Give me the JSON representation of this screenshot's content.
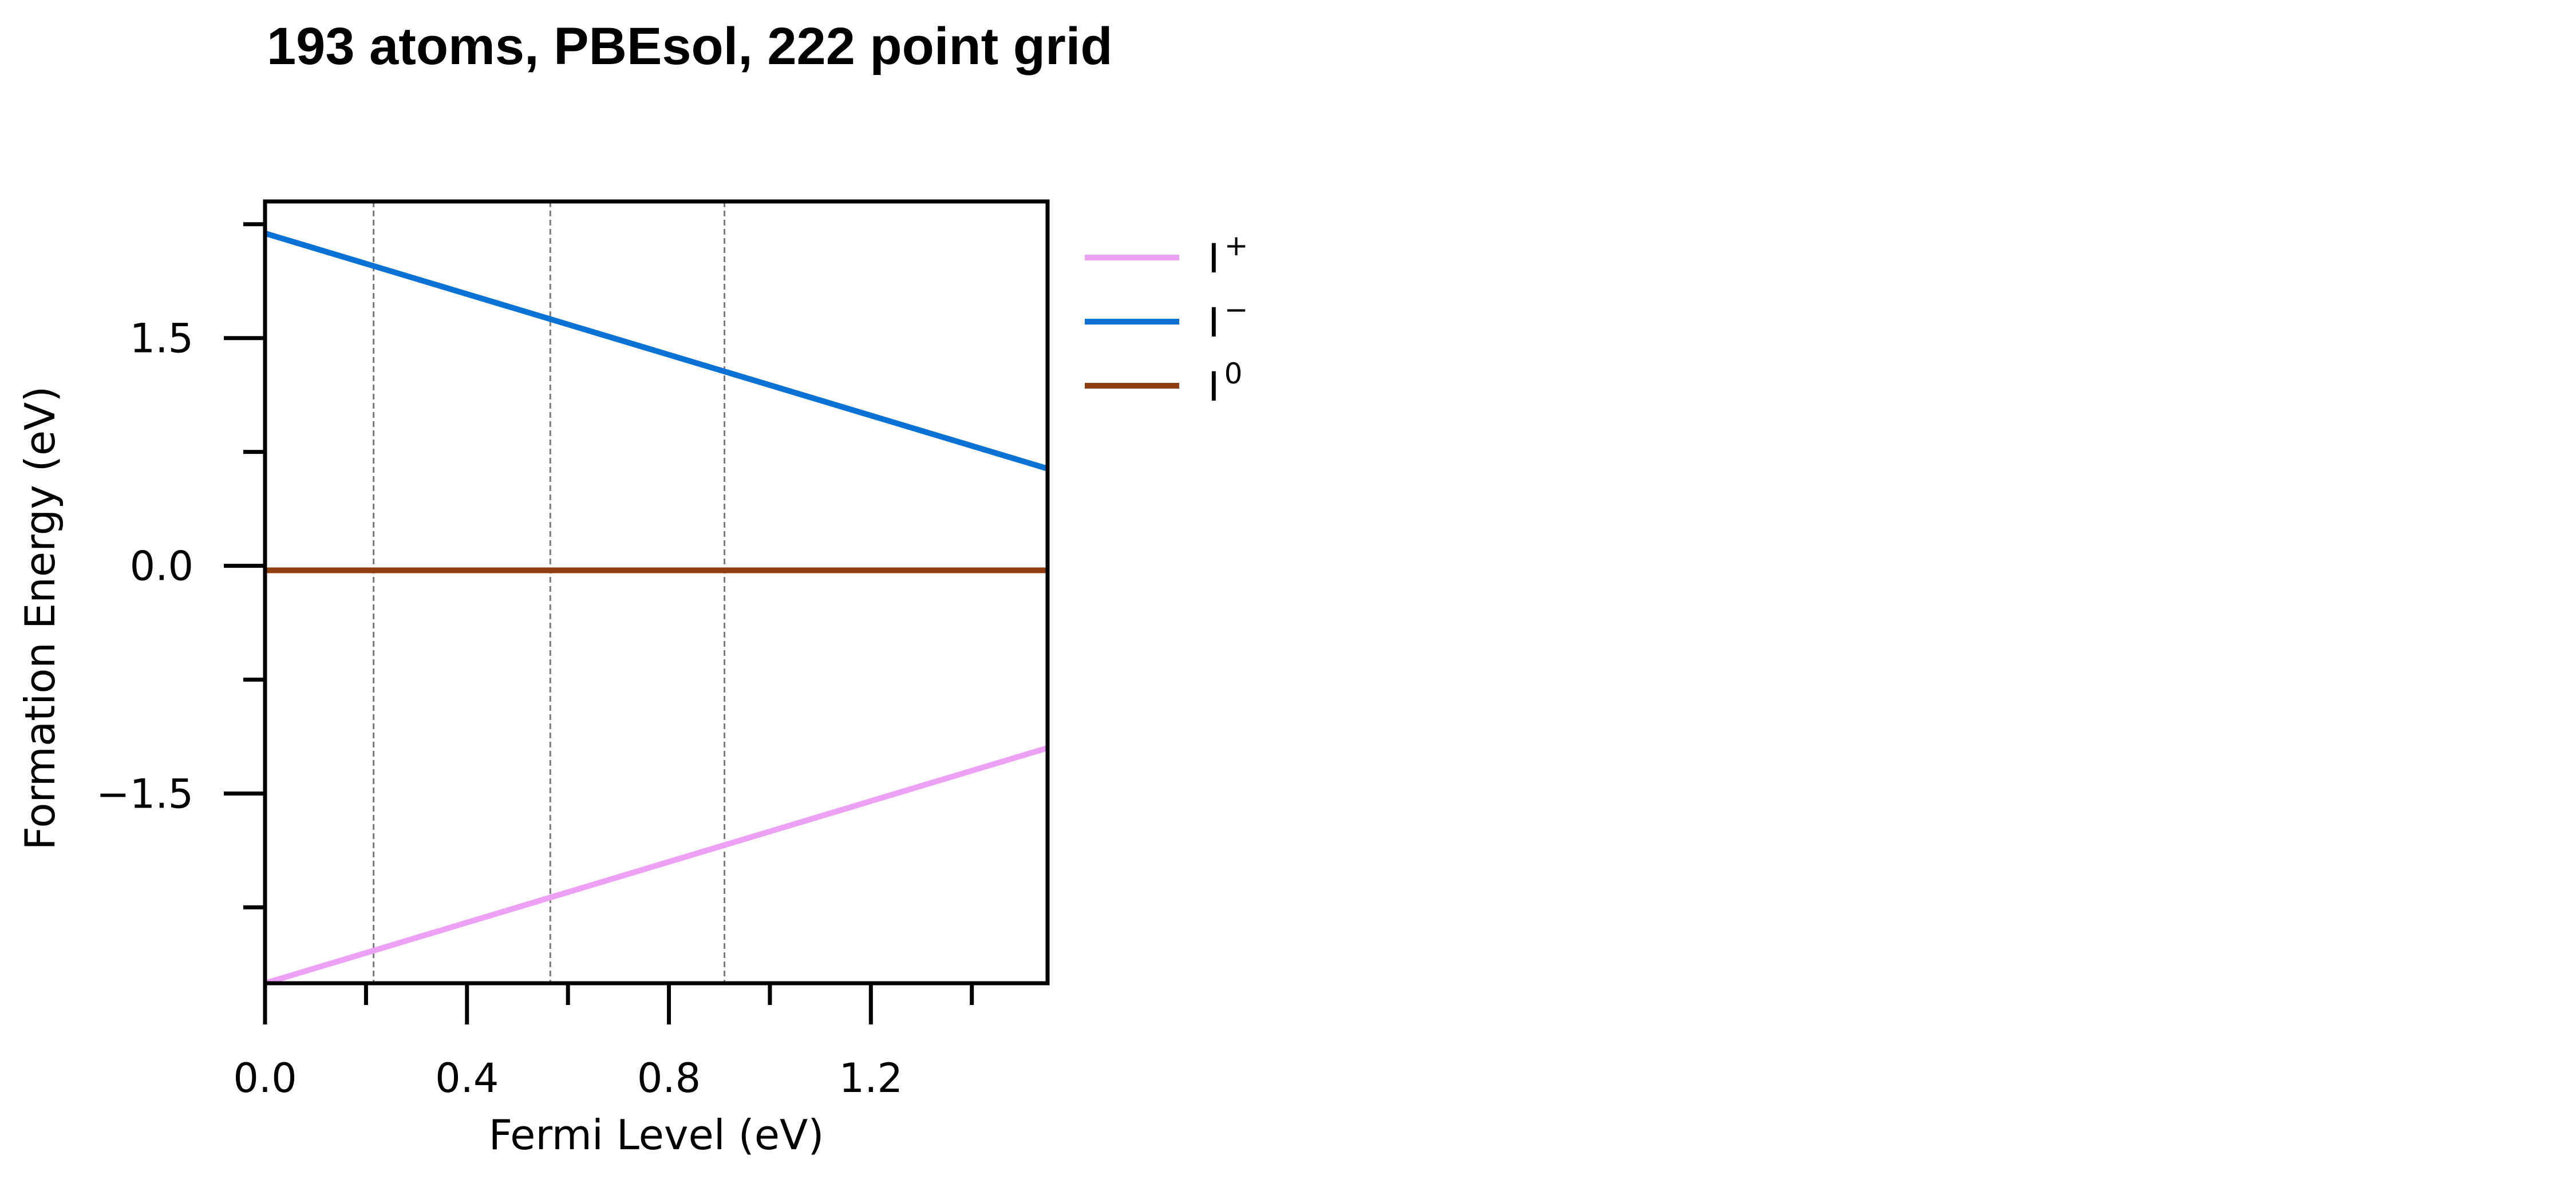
{
  "chart_data": {
    "type": "line",
    "title": "193 atoms, PBEsol, 222 point grid",
    "xlabel": "Fermi Level (eV)",
    "ylabel": "Formation Energy (eV)",
    "xlim": [
      0.0,
      1.55
    ],
    "ylim": [
      -2.75,
      2.4
    ],
    "xticks_major": [
      0.0,
      0.4,
      0.8,
      1.2
    ],
    "xtick_labels": [
      "0.0",
      "0.4",
      "0.8",
      "1.2"
    ],
    "xticks_minor": [
      0.2,
      0.6,
      1.0,
      1.4
    ],
    "yticks_major": [
      -1.5,
      0.0,
      1.5
    ],
    "ytick_labels": [
      "−1.5",
      "0.0",
      "1.5"
    ],
    "yticks_minor": [
      -2.25,
      -0.75,
      0.75,
      2.25
    ],
    "vertical_lines": [
      0.215,
      0.565,
      0.91
    ],
    "grid": false,
    "legend_position": "outside-right",
    "series": [
      {
        "name": "I⁺",
        "label_base": "I",
        "label_sup": "+",
        "color": "#eda1f5",
        "x": [
          0.0,
          1.55
        ],
        "y": [
          -2.75,
          -1.2
        ]
      },
      {
        "name": "I⁻",
        "label_base": "I",
        "label_sup": "−",
        "color": "#0a72d4",
        "x": [
          0.0,
          1.55
        ],
        "y": [
          2.19,
          0.64
        ]
      },
      {
        "name": "I⁰",
        "label_base": "I",
        "label_sup": "0",
        "color": "#8f3e12",
        "x": [
          0.0,
          1.55
        ],
        "y": [
          -0.03,
          -0.03
        ]
      }
    ]
  }
}
